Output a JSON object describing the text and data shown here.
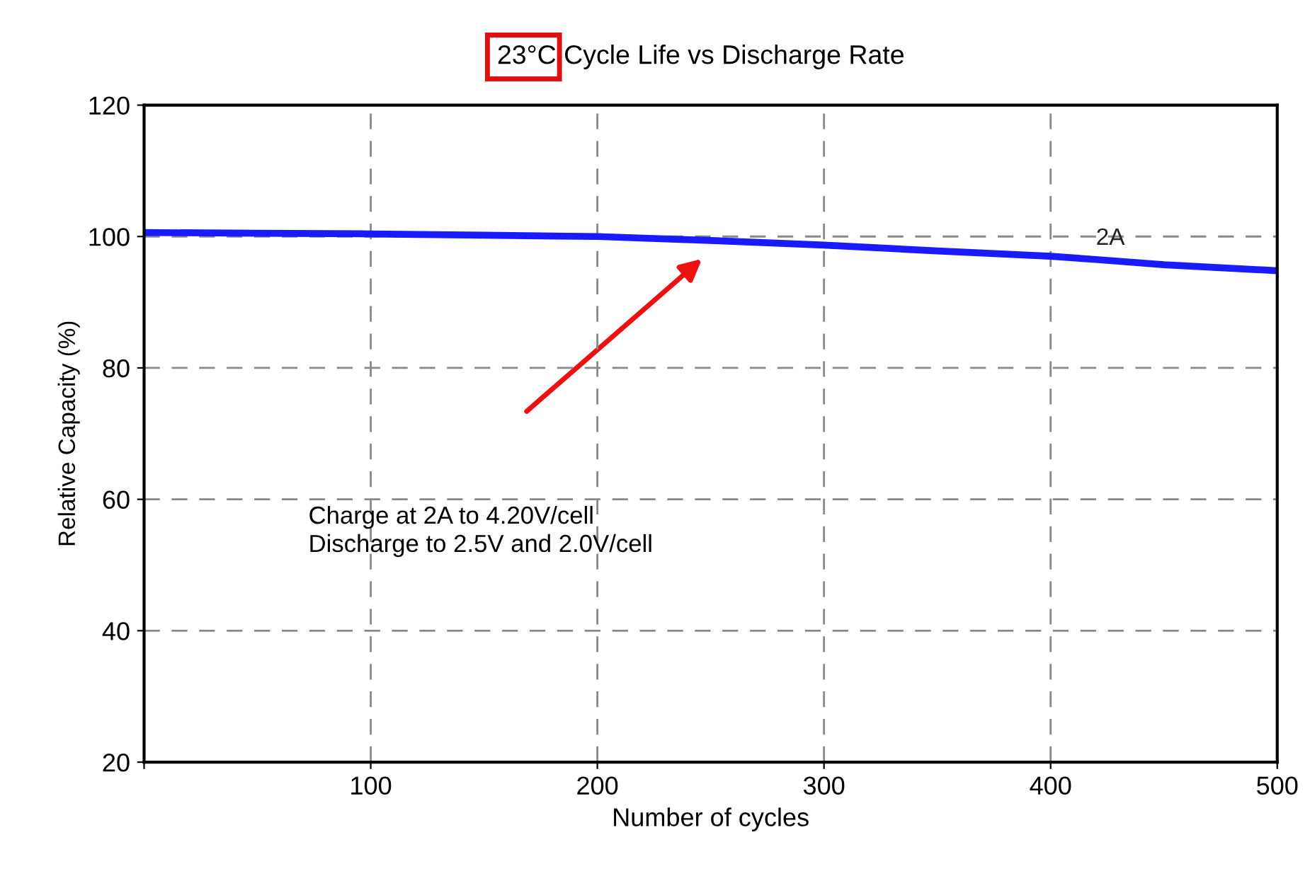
{
  "chart_data": {
    "type": "line",
    "title": "23°C Cycle Life vs Discharge Rate",
    "xlabel": "Number of cycles",
    "ylabel": "Relative Capacity (%)",
    "x": [
      0,
      50,
      100,
      150,
      200,
      250,
      300,
      350,
      400,
      420,
      450,
      500
    ],
    "series": [
      {
        "name": "2A",
        "color": "#1a1aff",
        "values": [
          100.6,
          100.5,
          100.4,
          100.2,
          100.0,
          99.4,
          98.7,
          97.8,
          97.0,
          96.5,
          95.7,
          94.8
        ]
      }
    ],
    "xlim": [
      0,
      500
    ],
    "ylim": [
      20,
      120
    ],
    "xticks": [
      {
        "value": 0,
        "label": null
      },
      100,
      200,
      300,
      400,
      500
    ],
    "yticks": [
      20,
      40,
      60,
      80,
      100,
      120
    ],
    "grid": true,
    "line_style": "solid",
    "marker": "none",
    "annotations": [
      {
        "text": "Charge at 2A to 4.20V/cell\nDischarge to 2.5V and 2.0V/cell"
      }
    ]
  }
}
